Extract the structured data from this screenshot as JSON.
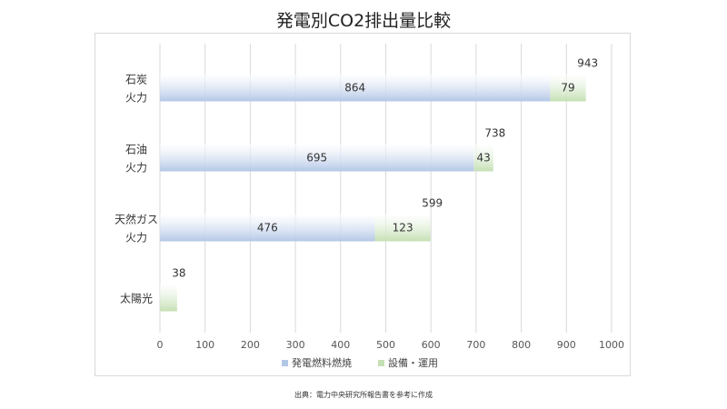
{
  "chart_data": {
    "type": "bar",
    "orientation": "horizontal",
    "stacked": true,
    "title": "発電別CO2排出量比較",
    "categories": [
      [
        "石炭",
        "火力"
      ],
      [
        "石油",
        "火力"
      ],
      [
        "天然ガス",
        "火力"
      ],
      [
        "太陽光"
      ]
    ],
    "series": [
      {
        "name": "発電燃料燃焼",
        "values": [
          864,
          695,
          476,
          0
        ],
        "color": "#b4c7e7",
        "label_visible": [
          true,
          true,
          true,
          false
        ]
      },
      {
        "name": "設備・運用",
        "values": [
          79,
          43,
          123,
          38
        ],
        "color": "#c5e0b4",
        "label_visible": [
          true,
          true,
          true,
          false
        ]
      }
    ],
    "totals": [
      943,
      738,
      599,
      38
    ],
    "xlim": [
      0,
      1000
    ],
    "xticks": [
      "0",
      "100",
      "200",
      "300",
      "400",
      "500",
      "600",
      "700",
      "800",
      "900",
      "1000"
    ],
    "grid": true,
    "legend_position": "bottom",
    "source_note": "出典：電力中央研究所報告書を参考に作成"
  }
}
